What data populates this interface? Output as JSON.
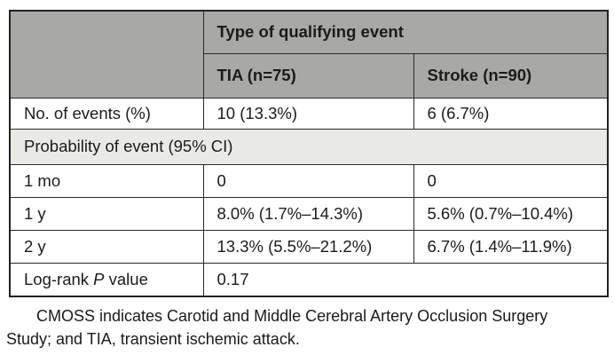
{
  "table": {
    "group_header": "Type of qualifying event",
    "columns": [
      "TIA (n=75)",
      "Stroke (n=90)"
    ],
    "rows": {
      "events": {
        "label": "No. of events (%)",
        "tia": "10 (13.3%)",
        "stroke": "6 (6.7%)"
      },
      "section": {
        "label": "Probability of event (95% CI)"
      },
      "mo1": {
        "label": "1 mo",
        "tia": "0",
        "stroke": "0"
      },
      "y1": {
        "label": "1 y",
        "tia": "8.0% (1.7%–14.3%)",
        "stroke": "5.6% (0.7%–10.4%)"
      },
      "y2": {
        "label": "2 y",
        "tia": "13.3% (5.5%–21.2%)",
        "stroke": "6.7% (1.4%–11.9%)"
      },
      "logrank": {
        "label_prefix": "Log-rank ",
        "label_italic": "P",
        "label_suffix": " value",
        "value": "0.17"
      }
    }
  },
  "footnote": {
    "text": "CMOSS indicates Carotid and Middle Cerebral Artery Occlusion Surgery\nStudy; and TIA, transient ischemic attack."
  },
  "colors": {
    "header_bg": "#a8a8a6",
    "section_bg": "#e9e9e6",
    "border": "#2a2a2a",
    "text": "#1b1b1b"
  }
}
